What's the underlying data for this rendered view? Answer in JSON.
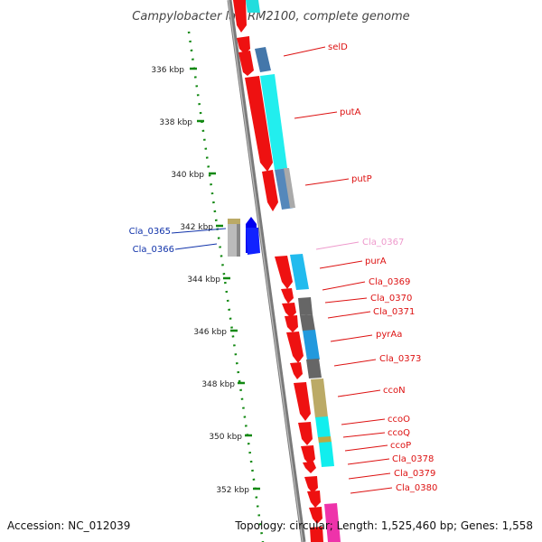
{
  "title": "Campylobacter lari RM2100, complete genome",
  "footer": {
    "accession": "Accession: NC_012039",
    "summary": "Topology: circular; Length: 1,525,460 bp; Genes: 1,558"
  },
  "ticks": [
    "336 kbp",
    "338 kbp",
    "340 kbp",
    "342 kbp",
    "344 kbp",
    "346 kbp",
    "348 kbp",
    "350 kbp",
    "352 kbp"
  ],
  "genes_right": [
    {
      "name": "selD",
      "color": "#dd1111"
    },
    {
      "name": "putA",
      "color": "#dd1111"
    },
    {
      "name": "putP",
      "color": "#dd1111"
    },
    {
      "name": "Cla_0367",
      "color": "#ee99cc"
    },
    {
      "name": "purA",
      "color": "#dd1111"
    },
    {
      "name": "Cla_0369",
      "color": "#dd1111"
    },
    {
      "name": "Cla_0370",
      "color": "#dd1111"
    },
    {
      "name": "Cla_0371",
      "color": "#dd1111"
    },
    {
      "name": "pyrAa",
      "color": "#dd1111"
    },
    {
      "name": "Cla_0373",
      "color": "#dd1111"
    },
    {
      "name": "ccoN",
      "color": "#dd1111"
    },
    {
      "name": "ccoO",
      "color": "#dd1111"
    },
    {
      "name": "ccoQ",
      "color": "#dd1111"
    },
    {
      "name": "ccoP",
      "color": "#dd1111"
    },
    {
      "name": "Cla_0378",
      "color": "#dd1111"
    },
    {
      "name": "Cla_0379",
      "color": "#dd1111"
    },
    {
      "name": "Cla_0380",
      "color": "#dd1111"
    }
  ],
  "genes_left": [
    {
      "name": "Cla_0365",
      "color": "#1133aa"
    },
    {
      "name": "Cla_0366",
      "color": "#1133aa"
    }
  ],
  "colors": {
    "forward_cds": "#ee1111",
    "reverse_cds": "#0000dd",
    "backbone": "#888888",
    "tick": "#118811"
  }
}
